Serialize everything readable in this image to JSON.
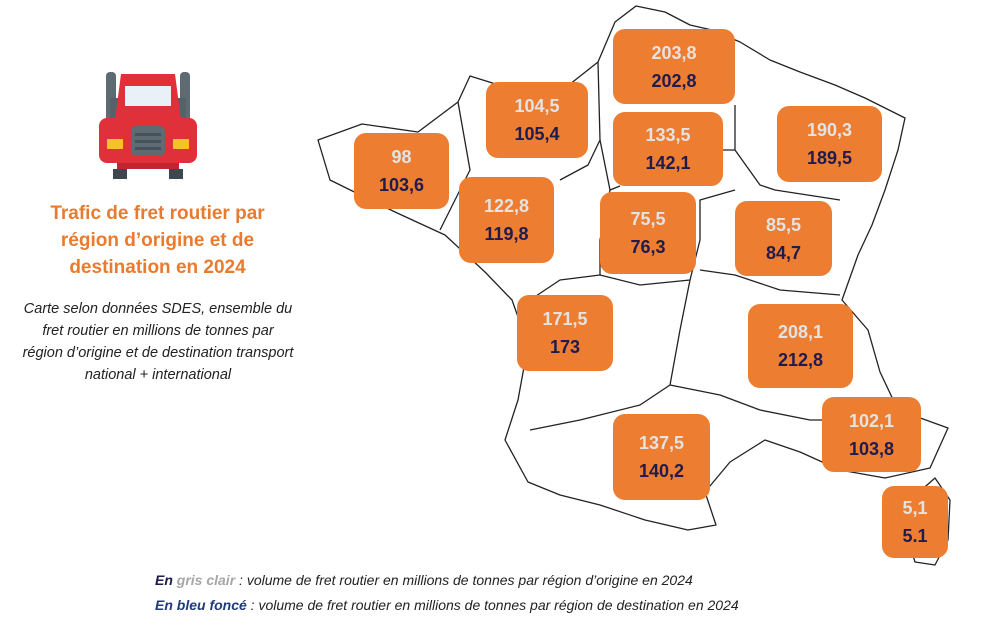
{
  "title": "Trafic de fret routier par région d’origine et de destination en 2024",
  "subtitle": "Carte selon données SDES, ensemble du fret routier en millions de tonnes par région d’origine et de destination transport national + international",
  "icon": "truck-icon",
  "colors": {
    "box": "#ED7D31",
    "origin_text": "#E3E3E3",
    "destination_text": "#1F1B4D",
    "title": "#E97B2F"
  },
  "regions": [
    {
      "origin": "203,8",
      "destination": "202,8"
    },
    {
      "origin": "104,5",
      "destination": "105,4"
    },
    {
      "origin": "133,5",
      "destination": "142,1"
    },
    {
      "origin": "190,3",
      "destination": "189,5"
    },
    {
      "origin": "98",
      "destination": "103,6"
    },
    {
      "origin": "122,8",
      "destination": "119,8"
    },
    {
      "origin": "75,5",
      "destination": "76,3"
    },
    {
      "origin": "85,5",
      "destination": "84,7"
    },
    {
      "origin": "171,5",
      "destination": "173"
    },
    {
      "origin": "208,1",
      "destination": "212,8"
    },
    {
      "origin": "102,1",
      "destination": "103,8"
    },
    {
      "origin": "137,5",
      "destination": "140,2"
    },
    {
      "origin": "5,1",
      "destination": "5.1"
    }
  ],
  "legend": {
    "line1_prefix": "En ",
    "line1_key": "gris clair",
    "line1_text": " : volume de fret routier en millions de tonnes par région d’origine en 2024",
    "line2_key": "En bleu foncé",
    "line2_text": " : volume de fret routier en millions de tonnes par région de destination en 2024"
  }
}
